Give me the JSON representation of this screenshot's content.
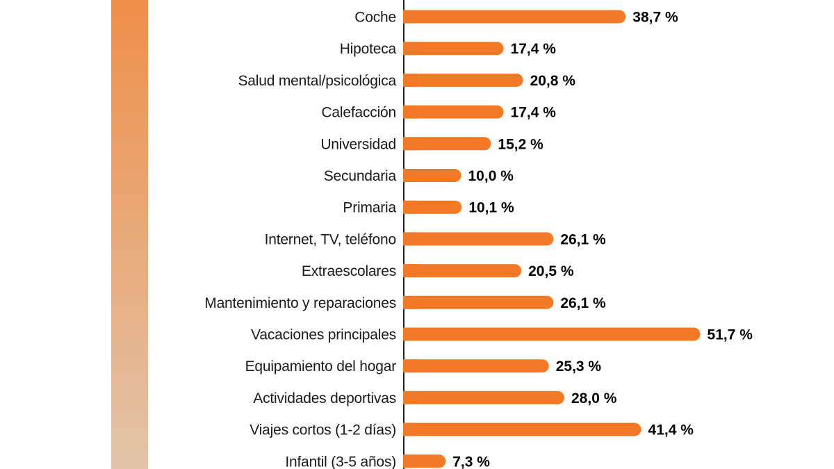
{
  "chart_data": {
    "type": "bar",
    "orientation": "horizontal",
    "categories": [
      "Coche",
      "Hipoteca",
      "Salud mental/psicológica",
      "Calefacción",
      "Universidad",
      "Secundaria",
      "Primaria",
      "Internet, TV, teléfono",
      "Extraescolares",
      "Mantenimiento y reparaciones",
      "Vacaciones principales",
      "Equipamiento del hogar",
      "Actividades deportivas",
      "Viajes cortos (1-2 días)",
      "Infantil (3-5 años)"
    ],
    "values": [
      38.7,
      17.4,
      20.8,
      17.4,
      15.2,
      10.0,
      10.1,
      26.1,
      20.5,
      26.1,
      51.7,
      25.3,
      28.0,
      41.4,
      7.3
    ],
    "value_labels": [
      "38,7 %",
      "17,4 %",
      "20,8 %",
      "17,4 %",
      "15,2 %",
      "10,0 %",
      "10,1 %",
      "26,1 %",
      "20,5 %",
      "26,1 %",
      "51,7 %",
      "25,3 %",
      "28,0 %",
      "41,4 %",
      "7,3 %"
    ],
    "xlim": [
      0,
      55
    ],
    "grid": false,
    "colors": {
      "bar": "#f07a26",
      "axis": "#222222",
      "accent_top": "#ee8f4a",
      "accent_bottom": "#e2c4a8"
    }
  }
}
